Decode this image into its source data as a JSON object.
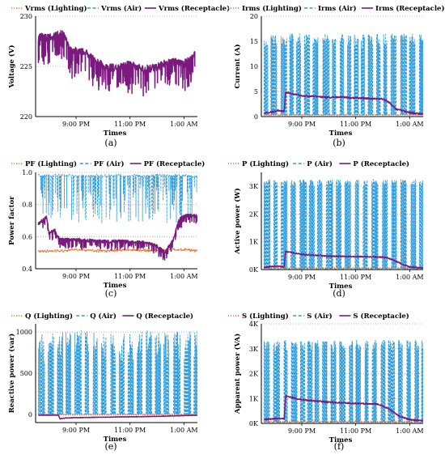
{
  "colors": {
    "lighting": "#F26B21",
    "air": "#2E9CDB",
    "receptacle": "#7A1A7E",
    "grid": "#A8A8A8",
    "axis": "#000000"
  },
  "chart_data": [
    {
      "type": "line",
      "panel_label": "(a)",
      "xlabel": "Times",
      "ylabel": "Voltage (V)",
      "x_range": [
        "19:30",
        "01:30"
      ],
      "x_ticks": [
        {
          "t": 21,
          "label": "9:00 PM"
        },
        {
          "t": 23,
          "label": "11:00 PM"
        },
        {
          "t": 25,
          "label": "1:00 AM"
        }
      ],
      "ylim": [
        220,
        230
      ],
      "yticks": [
        {
          "v": 220,
          "label": "220"
        },
        {
          "v": 225,
          "label": "225"
        },
        {
          "v": 230,
          "label": "230"
        }
      ],
      "grid": "horizontal-dotted",
      "legend": [
        {
          "label": "Vrms (Lighting)",
          "style": "dotted",
          "color": "#F26B21"
        },
        {
          "label": "Vrms (Air)",
          "style": "dashed",
          "color": "#2E9CDB"
        },
        {
          "label": "Vrms (Receptacle)",
          "style": "solid",
          "color": "#7A1A7E"
        }
      ],
      "series": [
        {
          "key": "receptacle",
          "name": "Vrms (Receptacle)",
          "x": [
            19.6,
            20.0,
            20.5,
            20.8,
            21.2,
            21.6,
            22.0,
            22.5,
            23.0,
            23.5,
            24.0,
            24.5,
            25.0,
            25.4
          ],
          "values": [
            228.0,
            227.8,
            228.3,
            226.5,
            226.6,
            225.9,
            225.0,
            224.8,
            225.2,
            224.7,
            224.9,
            225.5,
            225.2,
            226.2
          ],
          "spike_amp": 2.6,
          "spike_prob": 0.3,
          "noise": 0.4
        }
      ]
    },
    {
      "type": "line",
      "panel_label": "(b)",
      "xlabel": "Times",
      "ylabel": "Current (A)",
      "x_range": [
        "19:30",
        "01:30"
      ],
      "x_ticks": [
        {
          "t": 21,
          "label": "9:00 PM"
        },
        {
          "t": 23,
          "label": "11:00 PM"
        },
        {
          "t": 25,
          "label": "1:00 AM"
        }
      ],
      "ylim": [
        0,
        20
      ],
      "yticks": [
        {
          "v": 0,
          "label": "0"
        },
        {
          "v": 5,
          "label": "5"
        },
        {
          "v": 10,
          "label": "10"
        },
        {
          "v": 15,
          "label": "15"
        },
        {
          "v": 20,
          "label": "20"
        }
      ],
      "grid": "horizontal-dotted",
      "legend": [
        {
          "label": "Irms (Lighting)",
          "style": "dotted",
          "color": "#F26B21"
        },
        {
          "label": "Irms (Air)",
          "style": "dashed",
          "color": "#2E9CDB"
        },
        {
          "label": "Irms (Receptacle)",
          "style": "solid",
          "color": "#7A1A7E"
        }
      ],
      "series": [
        {
          "key": "air",
          "name": "Irms (Air)",
          "pattern": "bursts",
          "x_start": 19.6,
          "x_end": 25.5,
          "low": 0.3,
          "high": 15.0,
          "high_jitter": 1.5
        },
        {
          "key": "lighting",
          "name": "Irms (Lighting)",
          "x": [
            19.6,
            20.4,
            20.45,
            25.5
          ],
          "values": [
            0.3,
            0.3,
            0.35,
            0.35
          ]
        },
        {
          "key": "receptacle",
          "name": "Irms (Receptacle)",
          "x": [
            19.6,
            19.9,
            20.1,
            20.35,
            20.4,
            20.6,
            21.0,
            21.5,
            22.0,
            22.5,
            23.0,
            23.5,
            24.0,
            24.2,
            24.5,
            25.0,
            25.5
          ],
          "values": [
            0.7,
            0.9,
            1.2,
            1.0,
            4.8,
            4.6,
            4.1,
            4.0,
            3.8,
            3.9,
            3.7,
            3.6,
            3.5,
            3.0,
            1.5,
            0.8,
            0.5
          ],
          "noise": 0.15
        }
      ]
    },
    {
      "type": "line",
      "panel_label": "(c)",
      "xlabel": "Times",
      "ylabel": "Power factor",
      "x_range": [
        "19:30",
        "01:30"
      ],
      "x_ticks": [
        {
          "t": 21,
          "label": "9:00 PM"
        },
        {
          "t": 23,
          "label": "11:00 PM"
        },
        {
          "t": 25,
          "label": "1:00 AM"
        }
      ],
      "ylim": [
        0.4,
        1.0
      ],
      "yticks": [
        {
          "v": 0.4,
          "label": "0.4"
        },
        {
          "v": 0.6,
          "label": "0.6"
        },
        {
          "v": 0.8,
          "label": "0.8"
        },
        {
          "v": 1.0,
          "label": "1.0"
        }
      ],
      "grid": "horizontal-dotted",
      "legend": [
        {
          "label": "PF (Lighting)",
          "style": "dotted",
          "color": "#F26B21"
        },
        {
          "label": "PF (Air)",
          "style": "dashed",
          "color": "#2E9CDB"
        },
        {
          "label": "PF (Receptacle)",
          "style": "solid",
          "color": "#7A1A7E"
        }
      ],
      "series": [
        {
          "key": "air",
          "name": "PF (Air)",
          "pattern": "dips",
          "x_start": 19.6,
          "x_end": 25.5,
          "base": 0.98,
          "dip_min": 0.68,
          "dip_prob": 0.55
        },
        {
          "key": "lighting",
          "name": "PF (Lighting)",
          "x": [
            19.6,
            20.4,
            21.0,
            22.0,
            23.0,
            24.0,
            24.4,
            25.0,
            25.5
          ],
          "values": [
            0.51,
            0.51,
            0.52,
            0.51,
            0.52,
            0.51,
            0.52,
            0.52,
            0.51
          ],
          "noise": 0.006
        },
        {
          "key": "receptacle",
          "name": "PF (Receptacle)",
          "x": [
            19.6,
            19.9,
            20.0,
            20.2,
            20.35,
            20.42,
            21.0,
            22.0,
            23.0,
            23.7,
            24.0,
            24.3,
            24.6,
            24.8,
            25.0,
            25.5
          ],
          "values": [
            0.68,
            0.72,
            0.62,
            0.64,
            0.59,
            0.58,
            0.58,
            0.57,
            0.57,
            0.56,
            0.54,
            0.5,
            0.58,
            0.7,
            0.73,
            0.73
          ],
          "spike_amp": 0.05,
          "spike_prob": 0.3,
          "noise": 0.01
        }
      ]
    },
    {
      "type": "line",
      "panel_label": "(d)",
      "xlabel": "Times",
      "ylabel": "Active power (W)",
      "x_range": [
        "19:30",
        "01:30"
      ],
      "x_ticks": [
        {
          "t": 21,
          "label": "9:00 PM"
        },
        {
          "t": 23,
          "label": "11:00 PM"
        },
        {
          "t": 25,
          "label": "1:00 AM"
        }
      ],
      "ylim": [
        0,
        3500
      ],
      "yticks": [
        {
          "v": 0,
          "label": "0K"
        },
        {
          "v": 1000,
          "label": "1K"
        },
        {
          "v": 2000,
          "label": "2K"
        },
        {
          "v": 3000,
          "label": "3K"
        }
      ],
      "grid": "horizontal-dotted",
      "legend": [
        {
          "label": "P (Lighting)",
          "style": "dotted",
          "color": "#F26B21"
        },
        {
          "label": "P (Air)",
          "style": "dashed",
          "color": "#2E9CDB"
        },
        {
          "label": "P (Receptacle)",
          "style": "solid",
          "color": "#7A1A7E"
        }
      ],
      "series": [
        {
          "key": "air",
          "name": "P (Air)",
          "pattern": "bursts",
          "x_start": 19.6,
          "x_end": 25.5,
          "low": 30,
          "high": 3100,
          "high_jitter": 150
        },
        {
          "key": "lighting",
          "name": "P (Lighting)",
          "x": [
            19.6,
            25.5
          ],
          "values": [
            60,
            60
          ]
        },
        {
          "key": "receptacle",
          "name": "P (Receptacle)",
          "x": [
            19.6,
            20.1,
            20.35,
            20.4,
            21.0,
            22.0,
            23.0,
            24.0,
            24.2,
            24.6,
            25.0,
            25.5
          ],
          "values": [
            80,
            130,
            100,
            650,
            550,
            480,
            470,
            450,
            420,
            250,
            90,
            60
          ],
          "noise": 20
        }
      ]
    },
    {
      "type": "line",
      "panel_label": "(e)",
      "xlabel": "Times",
      "ylabel": "Reactive power (var)",
      "x_range": [
        "19:30",
        "01:30"
      ],
      "x_ticks": [
        {
          "t": 21,
          "label": "9:00 PM"
        },
        {
          "t": 23,
          "label": "11:00 PM"
        },
        {
          "t": 25,
          "label": "1:00 AM"
        }
      ],
      "ylim": [
        -100,
        1100
      ],
      "yticks": [
        {
          "v": 0,
          "label": "0"
        },
        {
          "v": 500,
          "label": "500"
        },
        {
          "v": 1000,
          "label": "1000"
        }
      ],
      "grid": "horizontal-dotted",
      "legend": [
        {
          "label": "Q (Lighting)",
          "style": "dotted",
          "color": "#F26B21"
        },
        {
          "label": "Q (Air)",
          "style": "dashed",
          "color": "#2E9CDB"
        },
        {
          "label": "Q (Receptacle)",
          "style": "solid",
          "color": "#7A1A7E"
        }
      ],
      "series": [
        {
          "key": "air",
          "name": "Q (Air)",
          "pattern": "bursts",
          "x_start": 19.6,
          "x_end": 25.5,
          "low": 0,
          "high": 800,
          "high_jitter": 220
        },
        {
          "key": "lighting",
          "name": "Q (Lighting)",
          "x": [
            19.6,
            25.5
          ],
          "values": [
            -5,
            -5
          ]
        },
        {
          "key": "receptacle",
          "name": "Q (Receptacle)",
          "x": [
            19.6,
            20.35,
            20.4,
            20.6,
            21.0,
            22.0,
            23.0,
            24.0,
            25.0,
            25.5
          ],
          "values": [
            -10,
            -10,
            -55,
            -45,
            -40,
            -35,
            -30,
            -25,
            -15,
            -10
          ],
          "noise": 3
        }
      ]
    },
    {
      "type": "line",
      "panel_label": "(f)",
      "xlabel": "Times",
      "ylabel": "Apparent power (VA)",
      "x_range": [
        "19:30",
        "01:30"
      ],
      "x_ticks": [
        {
          "t": 21,
          "label": "9:00 PM"
        },
        {
          "t": 23,
          "label": "11:00 PM"
        },
        {
          "t": 25,
          "label": "1:00 AM"
        }
      ],
      "ylim": [
        0,
        4000
      ],
      "yticks": [
        {
          "v": 0,
          "label": "0K"
        },
        {
          "v": 1000,
          "label": "1K"
        },
        {
          "v": 2000,
          "label": "2K"
        },
        {
          "v": 3000,
          "label": "3K"
        },
        {
          "v": 4000,
          "label": "4K"
        }
      ],
      "grid": "horizontal-dotted",
      "legend": [
        {
          "label": "S (Lighting)",
          "style": "dotted",
          "color": "#F26B21"
        },
        {
          "label": "S (Air)",
          "style": "dashed",
          "color": "#2E9CDB"
        },
        {
          "label": "S (Receptacle)",
          "style": "solid",
          "color": "#7A1A7E"
        }
      ],
      "series": [
        {
          "key": "air",
          "name": "S (Air)",
          "pattern": "bursts",
          "x_start": 19.6,
          "x_end": 25.5,
          "low": 40,
          "high": 3100,
          "high_jitter": 250
        },
        {
          "key": "lighting",
          "name": "S (Lighting)",
          "x": [
            19.6,
            25.5
          ],
          "values": [
            80,
            80
          ]
        },
        {
          "key": "receptacle",
          "name": "S (Receptacle)",
          "x": [
            19.6,
            20.1,
            20.35,
            20.4,
            21.0,
            22.0,
            23.0,
            23.8,
            24.2,
            24.6,
            25.0,
            25.5
          ],
          "values": [
            150,
            200,
            180,
            1100,
            950,
            850,
            800,
            780,
            600,
            300,
            150,
            100
          ],
          "noise": 25
        }
      ]
    }
  ]
}
